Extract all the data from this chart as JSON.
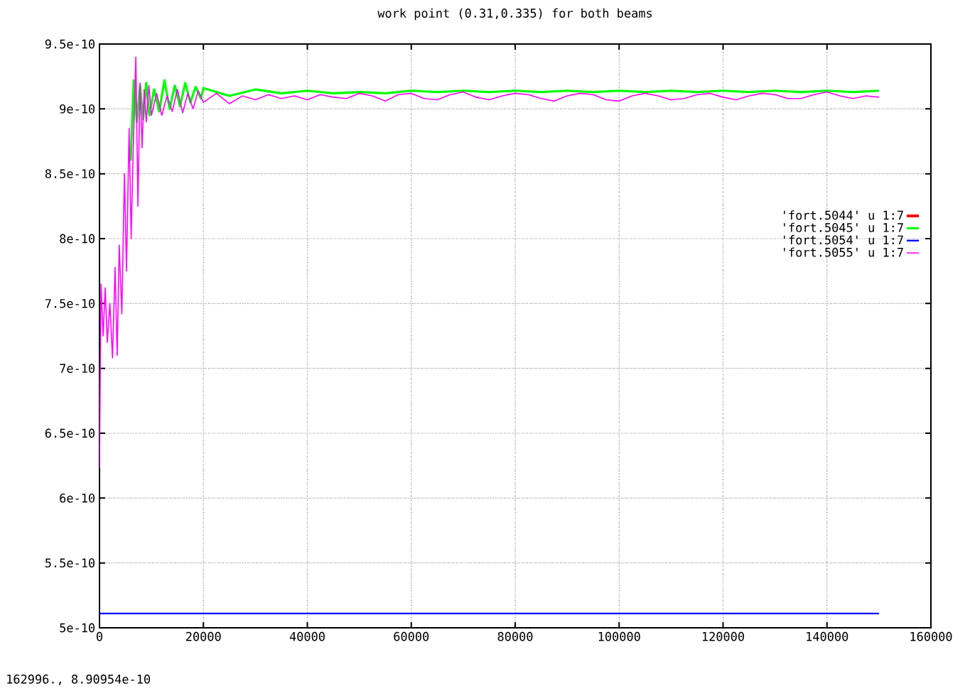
{
  "chart_data": {
    "type": "line",
    "title": "work point (0.31,0.335) for both beams",
    "annotations": [
      "162996.,  8.90954e-10"
    ],
    "xlim": [
      0,
      160000
    ],
    "xticks": [
      0,
      20000,
      40000,
      60000,
      80000,
      100000,
      120000,
      140000,
      160000
    ],
    "ylim": [
      5e-10,
      9.5e-10
    ],
    "yticks": [
      {
        "value": 5e-10,
        "label": "5e-10"
      },
      {
        "value": 5.5e-10,
        "label": "5.5e-10"
      },
      {
        "value": 6e-10,
        "label": "6e-10"
      },
      {
        "value": 6.5e-10,
        "label": "6.5e-10"
      },
      {
        "value": 7e-10,
        "label": "7e-10"
      },
      {
        "value": 7.5e-10,
        "label": "7.5e-10"
      },
      {
        "value": 8e-10,
        "label": "8e-10"
      },
      {
        "value": 8.5e-10,
        "label": "8.5e-10"
      },
      {
        "value": 9e-10,
        "label": "9e-10"
      },
      {
        "value": 9.5e-10,
        "label": "9.5e-10"
      }
    ],
    "grid": true,
    "legend": "top right",
    "marker": "none",
    "line_style": "solid",
    "series": [
      {
        "name": "'fort.5044' u 1:7",
        "color": "#ff0000"
      },
      {
        "name": "'fort.5045' u 1:7",
        "color": "#00ff00",
        "x": [
          6000,
          6600,
          7200,
          7800,
          8400,
          9000,
          9600,
          10500,
          11500,
          12500,
          13500,
          14500,
          15500,
          16500,
          17500,
          18500,
          19500,
          20000,
          25000,
          30000,
          35000,
          40000,
          45000,
          50000,
          55000,
          60000,
          65000,
          70000,
          75000,
          80000,
          85000,
          90000,
          95000,
          100000,
          105000,
          110000,
          115000,
          120000,
          125000,
          130000,
          135000,
          140000,
          145000,
          150000
        ],
        "values": [
          8.6e-10,
          9.22e-10,
          8.9e-10,
          9.18e-10,
          8.92e-10,
          9.2e-10,
          8.95e-10,
          9.15e-10,
          8.98e-10,
          9.22e-10,
          9e-10,
          9.18e-10,
          9.02e-10,
          9.2e-10,
          9.05e-10,
          9.17e-10,
          9.08e-10,
          9.16e-10,
          9.1e-10,
          9.15e-10,
          9.12e-10,
          9.14e-10,
          9.12e-10,
          9.13e-10,
          9.12e-10,
          9.14e-10,
          9.13e-10,
          9.14e-10,
          9.13e-10,
          9.14e-10,
          9.13e-10,
          9.14e-10,
          9.13e-10,
          9.14e-10,
          9.13e-10,
          9.14e-10,
          9.13e-10,
          9.14e-10,
          9.13e-10,
          9.14e-10,
          9.13e-10,
          9.14e-10,
          9.13e-10,
          9.14e-10
        ]
      },
      {
        "name": "'fort.5054' u 1:7",
        "color": "#0000ff",
        "x": [
          0,
          150000
        ],
        "values": [
          5.11e-10,
          5.11e-10
        ]
      },
      {
        "name": "'fort.5055' u 1:7",
        "color": "#ff00ff",
        "x": [
          0,
          300,
          700,
          1100,
          1500,
          2000,
          2500,
          3000,
          3400,
          3800,
          4300,
          4800,
          5200,
          5700,
          6100,
          6500,
          7000,
          7400,
          7800,
          8200,
          8600,
          9000,
          9500,
          10000,
          11000,
          12000,
          13000,
          14000,
          15000,
          16000,
          17000,
          18000,
          19000,
          20000,
          22500,
          25000,
          27500,
          30000,
          32500,
          35000,
          37500,
          40000,
          42500,
          45000,
          47500,
          50000,
          52500,
          55000,
          57500,
          60000,
          62500,
          65000,
          67500,
          70000,
          72500,
          75000,
          77500,
          80000,
          82500,
          85000,
          87500,
          90000,
          92500,
          95000,
          97500,
          100000,
          102500,
          105000,
          107500,
          110000,
          112500,
          115000,
          117500,
          120000,
          122500,
          125000,
          127500,
          130000,
          132500,
          135000,
          137500,
          140000,
          142500,
          145000,
          147500,
          150000
        ],
        "values": [
          6.23e-10,
          7.65e-10,
          7.25e-10,
          7.62e-10,
          7.2e-10,
          7.5e-10,
          7.08e-10,
          7.78e-10,
          7.1e-10,
          7.95e-10,
          7.42e-10,
          8.5e-10,
          7.75e-10,
          8.85e-10,
          8e-10,
          8.7e-10,
          9.4e-10,
          8.25e-10,
          9.2e-10,
          8.7e-10,
          9.15e-10,
          8.9e-10,
          9.18e-10,
          8.95e-10,
          9.12e-10,
          8.95e-10,
          9.1e-10,
          8.98e-10,
          9.15e-10,
          8.97e-10,
          9.12e-10,
          9e-10,
          9.14e-10,
          9.05e-10,
          9.12e-10,
          9.04e-10,
          9.1e-10,
          9.07e-10,
          9.11e-10,
          9.08e-10,
          9.1e-10,
          9.07e-10,
          9.11e-10,
          9.09e-10,
          9.08e-10,
          9.12e-10,
          9.1e-10,
          9.06e-10,
          9.11e-10,
          9.12e-10,
          9.08e-10,
          9.07e-10,
          9.11e-10,
          9.13e-10,
          9.09e-10,
          9.07e-10,
          9.1e-10,
          9.12e-10,
          9.11e-10,
          9.08e-10,
          9.06e-10,
          9.1e-10,
          9.12e-10,
          9.11e-10,
          9.07e-10,
          9.06e-10,
          9.1e-10,
          9.12e-10,
          9.1e-10,
          9.07e-10,
          9.08e-10,
          9.11e-10,
          9.12e-10,
          9.09e-10,
          9.07e-10,
          9.1e-10,
          9.12e-10,
          9.11e-10,
          9.08e-10,
          9.08e-10,
          9.11e-10,
          9.13e-10,
          9.1e-10,
          9.08e-10,
          9.1e-10,
          9.09e-10
        ]
      }
    ]
  }
}
